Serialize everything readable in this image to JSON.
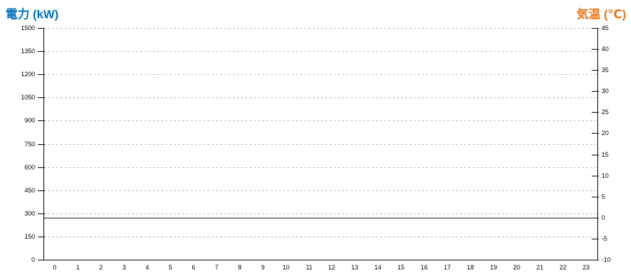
{
  "chart_data": {
    "type": "line",
    "title": "",
    "x": {
      "label": "",
      "categories": [
        "0",
        "1",
        "2",
        "3",
        "4",
        "5",
        "6",
        "7",
        "8",
        "9",
        "10",
        "11",
        "12",
        "13",
        "14",
        "15",
        "16",
        "17",
        "18",
        "19",
        "20",
        "21",
        "22",
        "23"
      ]
    },
    "y_left": {
      "label": "電力 (kW)",
      "min": 0,
      "max": 1500,
      "tick_step": 150,
      "ticks": [
        "1500",
        "1350",
        "1200",
        "1050",
        "900",
        "750",
        "600",
        "450",
        "300",
        "150",
        "0"
      ]
    },
    "y_right": {
      "label": "気温 (℃)",
      "min": -10,
      "max": 45,
      "tick_step": 5,
      "ticks": [
        "45",
        "40",
        "35",
        "30",
        "25",
        "20",
        "15",
        "10",
        "5",
        "0",
        "-5",
        "-10"
      ]
    },
    "series": [],
    "annotations": {
      "zero_line": {
        "axis": "right",
        "value": 0
      }
    },
    "layout": {
      "grid_horizontal": "dashed",
      "grid_vertical": "none",
      "legend": "none"
    },
    "colors": {
      "power_title": "#0072BC",
      "temp_title": "#E8751A",
      "grid": "#c0c0c0",
      "axis": "#000000",
      "zero_line": "#222222",
      "tick_label": "#000000"
    }
  }
}
